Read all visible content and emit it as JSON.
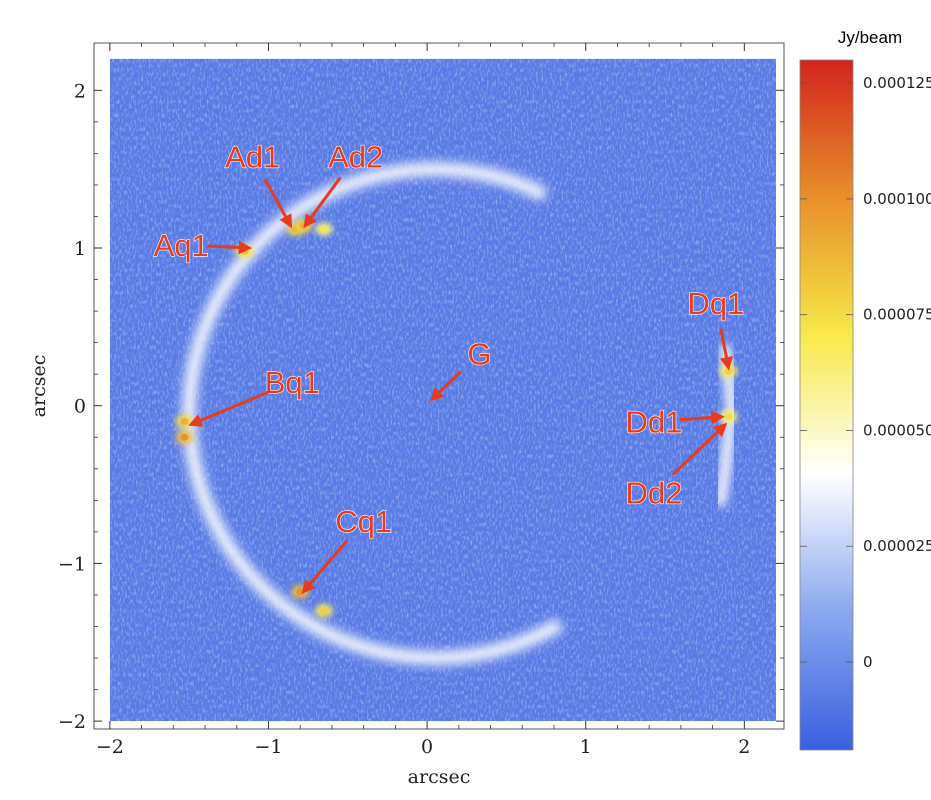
{
  "chart_data": {
    "type": "heatmap",
    "title": "",
    "xlabel": "arcsec",
    "ylabel": "arcsec",
    "xlim": [
      -2.1,
      2.25
    ],
    "ylim": [
      -2.05,
      2.3
    ],
    "data_extent": {
      "x": [
        -2.0,
        2.2
      ],
      "y": [
        -2.0,
        2.2
      ]
    },
    "x_ticks": [
      -2,
      -1,
      0,
      1,
      2
    ],
    "y_ticks": [
      -2,
      -1,
      0,
      1,
      2
    ],
    "x_tick_labels": [
      "−2",
      "−1",
      "0",
      "1",
      "2"
    ],
    "y_tick_labels": [
      "−2",
      "−1",
      "0",
      "1",
      "2"
    ],
    "background_level": -8e-06,
    "arc": {
      "center": [
        0.05,
        -0.05
      ],
      "radius": 1.55,
      "from_angle_deg": 65,
      "to_angle_deg": 300,
      "peak_level": 4e-05
    },
    "east_arc": {
      "points": [
        [
          1.88,
          0.35
        ],
        [
          1.9,
          0.2
        ],
        [
          1.92,
          0.0
        ],
        [
          1.9,
          -0.2
        ],
        [
          1.88,
          -0.4
        ],
        [
          1.85,
          -0.6
        ]
      ],
      "peak_level": 4e-05
    },
    "bright_spots": [
      {
        "x": -0.83,
        "y": 1.12,
        "level": 9e-05
      },
      {
        "x": -0.78,
        "y": 1.14,
        "level": 9e-05
      },
      {
        "x": -1.15,
        "y": 0.98,
        "level": 8.5e-05
      },
      {
        "x": -1.53,
        "y": -0.1,
        "level": 9e-05
      },
      {
        "x": -1.53,
        "y": -0.2,
        "level": 0.0001
      },
      {
        "x": -0.8,
        "y": -1.18,
        "level": 0.0001
      },
      {
        "x": -0.65,
        "y": -1.3,
        "level": 8e-05
      },
      {
        "x": 1.9,
        "y": 0.22,
        "level": 8e-05
      },
      {
        "x": 1.9,
        "y": -0.07,
        "level": 7.5e-05
      },
      {
        "x": -0.65,
        "y": 1.12,
        "level": 7e-05
      }
    ],
    "colorbar": {
      "title": "Jy/beam",
      "min": -1.9e-05,
      "max": 0.00013,
      "ticks": [
        0,
        2.5e-05,
        5e-05,
        7.5e-05,
        0.0001,
        0.000125
      ],
      "tick_labels": [
        "0",
        "0.000025",
        "0.000050",
        "0.000075",
        "0.000100",
        "0.000125"
      ],
      "colors": [
        "#3a5fe0",
        "#8aa8ee",
        "#ffffff",
        "#f6e94a",
        "#e8902a",
        "#d1251e"
      ]
    },
    "annotations": [
      {
        "label": "Ad1",
        "text_xy": [
          -1.1,
          1.58
        ],
        "tip_xy": [
          -0.86,
          1.14
        ]
      },
      {
        "label": "Ad2",
        "text_xy": [
          -0.45,
          1.58
        ],
        "tip_xy": [
          -0.77,
          1.14
        ]
      },
      {
        "label": "Aq1",
        "text_xy": [
          -1.55,
          1.02
        ],
        "tip_xy": [
          -1.12,
          1.0
        ]
      },
      {
        "label": "Bq1",
        "text_xy": [
          -0.85,
          0.15
        ],
        "tip_xy": [
          -1.49,
          -0.12
        ]
      },
      {
        "label": "Cq1",
        "text_xy": [
          -0.4,
          -0.73
        ],
        "tip_xy": [
          -0.78,
          -1.18
        ]
      },
      {
        "label": "G",
        "text_xy": [
          0.33,
          0.33
        ],
        "tip_xy": [
          0.03,
          0.04
        ]
      },
      {
        "label": "Dq1",
        "text_xy": [
          1.82,
          0.65
        ],
        "tip_xy": [
          1.9,
          0.24
        ]
      },
      {
        "label": "Dd1",
        "text_xy": [
          1.43,
          -0.1
        ],
        "tip_xy": [
          1.86,
          -0.07
        ]
      },
      {
        "label": "Dd2",
        "text_xy": [
          1.43,
          -0.55
        ],
        "tip_xy": [
          1.88,
          -0.12
        ]
      }
    ],
    "annotation_color": "#e83a1c",
    "grid": false,
    "legend": "right colorbar"
  }
}
